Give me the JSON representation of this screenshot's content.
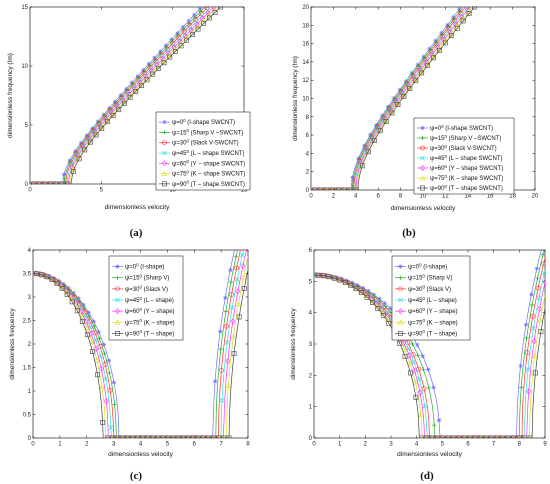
{
  "figure": {
    "legend_prefix": "ψ=",
    "series_colors": [
      "#6f6fff",
      "#22b022",
      "#ff3030",
      "#33dddd",
      "#ff33ff",
      "#dddd22",
      "#444444"
    ],
    "series_markers": [
      "star",
      "plus",
      "circle",
      "cross",
      "diamond",
      "triangle",
      "square"
    ]
  },
  "chart_data": [
    {
      "id": "a",
      "caption": "(a)",
      "type": "line",
      "xlabel": "dimensionless velocity",
      "ylabel": "dimensionless frequency (Im)",
      "xlim": [
        0,
        15
      ],
      "ylim": [
        0,
        15
      ],
      "xticks": [
        0,
        5,
        10,
        15
      ],
      "yticks": [
        0,
        5,
        10,
        15
      ],
      "grid": false,
      "legend_position": "bottom-right",
      "curve_kind": "imag_linear",
      "series": [
        {
          "angle": "0",
          "label": "(I-shape SWCNT)",
          "onset": 2.3,
          "slope": 1.27
        },
        {
          "angle": "15",
          "label": "(Sharp V –SWCNT)",
          "onset": 2.4,
          "slope": 1.25
        },
        {
          "angle": "30",
          "label": "(Slack V-SWCNT)",
          "onset": 2.5,
          "slope": 1.23
        },
        {
          "angle": "45",
          "label": "(L – shape SWCNT)",
          "onset": 2.6,
          "slope": 1.21
        },
        {
          "angle": "60",
          "label": "(Y – shape SWCNT)",
          "onset": 2.7,
          "slope": 1.19
        },
        {
          "angle": "75",
          "label": "(K – shape SWCNT)",
          "onset": 2.8,
          "slope": 1.17
        },
        {
          "angle": "90",
          "label": "(T – shape SWCNT)",
          "onset": 2.9,
          "slope": 1.15
        }
      ]
    },
    {
      "id": "b",
      "caption": "(b)",
      "type": "line",
      "xlabel": "dimensionless velocity",
      "ylabel": "dimensionless frequency (Im)",
      "xlim": [
        0,
        20
      ],
      "ylim": [
        0,
        20
      ],
      "xticks": [
        0,
        2,
        4,
        6,
        8,
        10,
        12,
        14,
        16,
        18,
        20
      ],
      "yticks": [
        0,
        2,
        4,
        6,
        8,
        10,
        12,
        14,
        16,
        18,
        20
      ],
      "grid": false,
      "legend_position": "bottom-right",
      "curve_kind": "imag_linear",
      "series": [
        {
          "angle": "0",
          "label": "(I-shape SWCNT)",
          "onset": 3.6,
          "slope": 1.55
        },
        {
          "angle": "15",
          "label": "(Sharp V –SWCNT)",
          "onset": 3.7,
          "slope": 1.53
        },
        {
          "angle": "30",
          "label": "(Slack V-SWCNT)",
          "onset": 3.8,
          "slope": 1.51
        },
        {
          "angle": "45",
          "label": "(L – shape SWCNT)",
          "onset": 3.9,
          "slope": 1.49
        },
        {
          "angle": "60",
          "label": "(Y – shape SWCNT)",
          "onset": 4.0,
          "slope": 1.47
        },
        {
          "angle": "75",
          "label": "(K – shape SWCNT)",
          "onset": 4.1,
          "slope": 1.45
        },
        {
          "angle": "90",
          "label": "(T – shape SWCNT)",
          "onset": 4.2,
          "slope": 1.43
        }
      ]
    },
    {
      "id": "c",
      "caption": "(c)",
      "type": "line",
      "xlabel": "dimensionless velocity",
      "ylabel": "dimensionless frequency",
      "xlim": [
        0,
        8
      ],
      "ylim": [
        0,
        4
      ],
      "xticks": [
        0,
        1,
        2,
        3,
        4,
        5,
        6,
        7,
        8
      ],
      "yticks": [
        0,
        0.5,
        1,
        1.5,
        2,
        2.5,
        3,
        3.5,
        4
      ],
      "grid": false,
      "legend_position": "top-center",
      "curve_kind": "real_divergence",
      "omega0": 3.5,
      "series": [
        {
          "angle": "0",
          "label": "(I-shape)",
          "vc1": 3.2,
          "vc2": 6.7
        },
        {
          "angle": "15",
          "label": "(Sharp V)",
          "vc1": 3.1,
          "vc2": 6.8
        },
        {
          "angle": "30",
          "label": "(Slack V)",
          "vc1": 3.0,
          "vc2": 6.9
        },
        {
          "angle": "45",
          "label": "(L – shape)",
          "vc1": 2.9,
          "vc2": 7.0
        },
        {
          "angle": "60",
          "label": "(Y – shape)",
          "vc1": 2.8,
          "vc2": 7.1
        },
        {
          "angle": "75",
          "label": "(K – shape)",
          "vc1": 2.7,
          "vc2": 7.2
        },
        {
          "angle": "90",
          "label": "(T – shape)",
          "vc1": 2.6,
          "vc2": 7.3
        }
      ]
    },
    {
      "id": "d",
      "caption": "(d)",
      "type": "line",
      "xlabel": "dimensionless velocity",
      "ylabel": "dimensionless frequency",
      "xlim": [
        0,
        9
      ],
      "ylim": [
        0,
        6
      ],
      "xticks": [
        0,
        1,
        2,
        3,
        4,
        5,
        6,
        7,
        8,
        9
      ],
      "yticks": [
        0,
        1,
        2,
        3,
        4,
        5,
        6
      ],
      "grid": false,
      "legend_position": "top-center",
      "curve_kind": "real_divergence",
      "omega0": 5.2,
      "series": [
        {
          "angle": "0",
          "label": "(I-shape)",
          "vc1": 4.9,
          "vc2": 7.9
        },
        {
          "angle": "15",
          "label": "(Sharp V)",
          "vc1": 4.7,
          "vc2": 8.0
        },
        {
          "angle": "30",
          "label": "(Slack V)",
          "vc1": 4.5,
          "vc2": 8.1
        },
        {
          "angle": "45",
          "label": "(L – shape)",
          "vc1": 4.4,
          "vc2": 8.2
        },
        {
          "angle": "60",
          "label": "(Y – shape)",
          "vc1": 4.3,
          "vc2": 8.3
        },
        {
          "angle": "75",
          "label": "(K – shape)",
          "vc1": 4.2,
          "vc2": 8.4
        },
        {
          "angle": "90",
          "label": "(T – shape)",
          "vc1": 4.1,
          "vc2": 8.5
        }
      ]
    }
  ]
}
